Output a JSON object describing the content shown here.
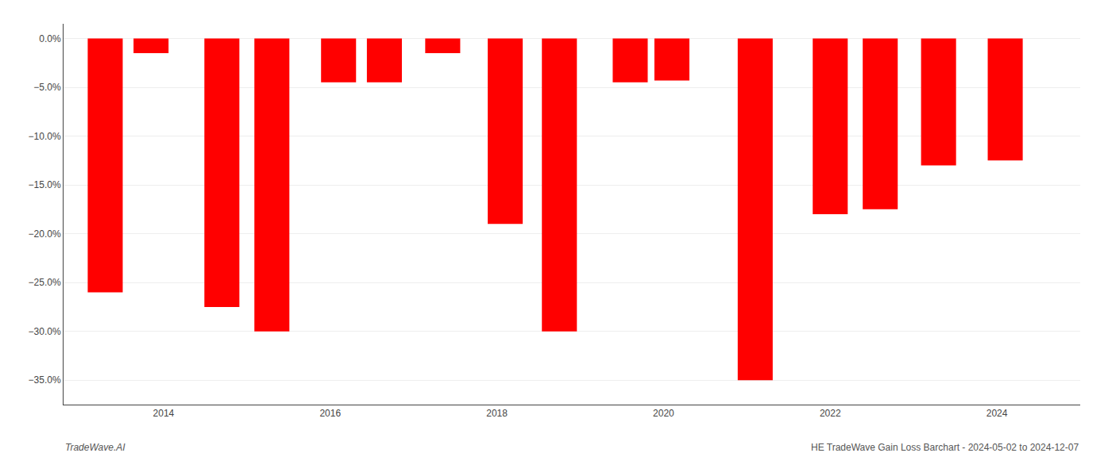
{
  "chart_data": {
    "type": "bar",
    "x": [
      2013.3,
      2013.85,
      2014.7,
      2015.3,
      2016.1,
      2016.65,
      2017.35,
      2018.1,
      2018.75,
      2019.6,
      2020.1,
      2021.1,
      2022.0,
      2022.6,
      2023.3,
      2024.1
    ],
    "values": [
      -26.0,
      -1.5,
      -27.5,
      -30.0,
      -4.5,
      -4.5,
      -1.5,
      -19.0,
      -30.0,
      -4.5,
      -4.3,
      -35.0,
      -18.0,
      -17.5,
      -13.0,
      -12.5
    ],
    "color": "#ff0000",
    "xlim": [
      2012.8,
      2025.0
    ],
    "xticks": [
      2014,
      2016,
      2018,
      2020,
      2022,
      2024
    ],
    "ylim": [
      -37.5,
      1.5
    ],
    "yticks": [
      {
        "value": 0.0,
        "label": "0.0%"
      },
      {
        "value": -5.0,
        "label": "−5.0%"
      },
      {
        "value": -10.0,
        "label": "−10.0%"
      },
      {
        "value": -15.0,
        "label": "−15.0%"
      },
      {
        "value": -20.0,
        "label": "−20.0%"
      },
      {
        "value": -25.0,
        "label": "−25.0%"
      },
      {
        "value": -30.0,
        "label": "−30.0%"
      },
      {
        "value": -35.0,
        "label": "−35.0%"
      }
    ],
    "grid": true,
    "annotations": [
      "TradeWave.AI",
      "HE TradeWave Gain Loss Barchart - 2024-05-02 to 2024-12-07"
    ]
  }
}
